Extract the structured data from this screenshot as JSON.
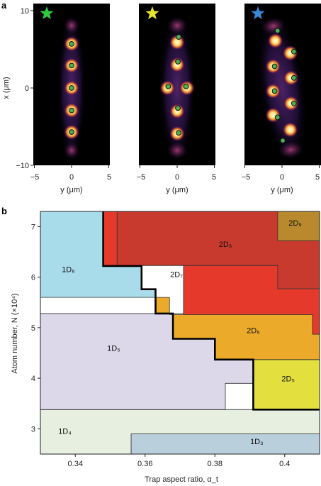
{
  "panel_a": {
    "label": "a",
    "y_axis_label": "x (μm)",
    "y_ticks": [
      "10",
      "0",
      "−10"
    ],
    "x_axis_label": "y (μm)",
    "x_ticks": [
      "−5",
      "0",
      "5"
    ],
    "images": [
      {
        "star_color": "#2ecc40",
        "sites": [
          [
            0,
            5.7
          ],
          [
            0,
            2.9
          ],
          [
            0,
            0
          ],
          [
            0,
            -2.9
          ],
          [
            0,
            -5.7
          ]
        ],
        "atoms": [
          [
            0,
            5.7
          ],
          [
            0,
            2.9
          ],
          [
            0,
            0
          ],
          [
            0,
            -2.9
          ],
          [
            0,
            -5.7
          ]
        ],
        "pattern": "chain"
      },
      {
        "star_color": "#e6e62c",
        "sites": [
          [
            0,
            5.9
          ],
          [
            0,
            3.0
          ],
          [
            -1.3,
            0
          ],
          [
            1.3,
            0
          ],
          [
            0,
            -3.0
          ],
          [
            0,
            -5.9
          ]
        ],
        "atoms": [
          [
            0.2,
            6.6
          ],
          [
            0.1,
            3.4
          ],
          [
            -1.2,
            0.2
          ],
          [
            1.2,
            0.2
          ],
          [
            0.1,
            -2.6
          ],
          [
            0.2,
            -5.8
          ]
        ],
        "pattern": "zigzag"
      },
      {
        "star_color": "#3a87d8",
        "sites": [
          [
            -0.9,
            6.1
          ],
          [
            1.1,
            4.5
          ],
          [
            -1.2,
            2.8
          ],
          [
            1.2,
            1.3
          ],
          [
            -1.2,
            -0.4
          ],
          [
            1.2,
            -2.0
          ],
          [
            -1.2,
            -3.5
          ],
          [
            1.1,
            -5.4
          ]
        ],
        "atoms": [
          [
            -0.6,
            7.4
          ],
          [
            1.6,
            4.7
          ],
          [
            -1.0,
            2.8
          ],
          [
            1.6,
            1.3
          ],
          [
            -1.0,
            -0.4
          ],
          [
            1.6,
            -2.0
          ],
          [
            -0.6,
            -3.8
          ],
          [
            0.1,
            -6.8
          ]
        ],
        "pattern": "2d"
      }
    ]
  },
  "panel_b": {
    "label": "b",
    "ylabel": "Atom number, N (×10⁴)",
    "xlabel": "Trap aspect ratio, α_t",
    "y_ticks": [
      "3",
      "4",
      "5",
      "6",
      "7"
    ],
    "x_ticks": [
      "0.34",
      "0.36",
      "0.38",
      "0.4"
    ]
  },
  "chart_data": {
    "type": "heatmap",
    "title": "",
    "xlabel": "Trap aspect ratio, α_t",
    "ylabel": "Atom number, N (×10⁴)",
    "xlim": [
      0.33,
      0.41
    ],
    "ylim": [
      2.5,
      7.3
    ],
    "regions": [
      {
        "label": "1D₃",
        "color": "#b9cfdb",
        "polygon": [
          [
            0.356,
            2.5
          ],
          [
            0.41,
            2.5
          ],
          [
            0.41,
            2.9
          ],
          [
            0.356,
            2.9
          ]
        ]
      },
      {
        "label": "1D₄",
        "color": "#e6efe0",
        "polygon": [
          [
            0.33,
            2.5
          ],
          [
            0.356,
            2.5
          ],
          [
            0.356,
            2.9
          ],
          [
            0.41,
            2.9
          ],
          [
            0.41,
            3.38
          ],
          [
            0.33,
            3.38
          ]
        ]
      },
      {
        "label": "1D₅",
        "color": "#ddd7ea",
        "polygon": [
          [
            0.33,
            3.38
          ],
          [
            0.383,
            3.38
          ],
          [
            0.383,
            3.9
          ],
          [
            0.391,
            3.9
          ],
          [
            0.391,
            5.28
          ],
          [
            0.33,
            5.28
          ]
        ]
      },
      {
        "label": "1D₆",
        "color": "#a8dcea",
        "polygon": [
          [
            0.33,
            5.28
          ],
          [
            0.363,
            5.28
          ],
          [
            0.363,
            5.6
          ],
          [
            0.33,
            5.6
          ],
          [
            0.33,
            7.3
          ],
          [
            0.348,
            7.3
          ],
          [
            0.348,
            6.22
          ],
          [
            0.359,
            6.22
          ],
          [
            0.359,
            5.76
          ],
          [
            0.363,
            5.76
          ],
          [
            0.363,
            5.28
          ]
        ]
      },
      {
        "label": "2D₅",
        "color": "#e2df3f",
        "polygon": [
          [
            0.391,
            3.38
          ],
          [
            0.41,
            3.38
          ],
          [
            0.41,
            4.37
          ],
          [
            0.391,
            4.37
          ]
        ]
      },
      {
        "label": "2D₆",
        "color": "#ecaa2a",
        "polygon": [
          [
            0.363,
            5.28
          ],
          [
            0.368,
            5.28
          ],
          [
            0.368,
            4.78
          ],
          [
            0.38,
            4.78
          ],
          [
            0.38,
            4.37
          ],
          [
            0.41,
            4.37
          ],
          [
            0.41,
            4.87
          ],
          [
            0.408,
            4.87
          ],
          [
            0.408,
            5.26
          ],
          [
            0.367,
            5.26
          ],
          [
            0.367,
            5.6
          ],
          [
            0.363,
            5.6
          ]
        ]
      },
      {
        "label": "2D₇",
        "color": "#e5392b",
        "polygon": [
          [
            0.348,
            7.3
          ],
          [
            0.352,
            7.3
          ],
          [
            0.352,
            6.24
          ],
          [
            0.371,
            6.24
          ],
          [
            0.371,
            5.26
          ],
          [
            0.408,
            5.26
          ],
          [
            0.408,
            4.87
          ],
          [
            0.41,
            4.87
          ],
          [
            0.41,
            5.77
          ],
          [
            0.398,
            5.77
          ],
          [
            0.398,
            6.23
          ],
          [
            0.352,
            6.23
          ],
          [
            0.348,
            6.23
          ]
        ]
      },
      {
        "label": "2D₈",
        "color": "#c93a2e",
        "polygon": [
          [
            0.352,
            7.3
          ],
          [
            0.41,
            7.3
          ],
          [
            0.41,
            5.77
          ],
          [
            0.398,
            5.77
          ],
          [
            0.398,
            6.23
          ],
          [
            0.352,
            6.23
          ]
        ]
      },
      {
        "label": "2D₉",
        "color": "#b8892d",
        "polygon": [
          [
            0.398,
            6.72
          ],
          [
            0.41,
            6.72
          ],
          [
            0.41,
            7.3
          ],
          [
            0.398,
            7.3
          ]
        ]
      }
    ],
    "boundary_1D_2D": [
      [
        0.348,
        7.3
      ],
      [
        0.348,
        6.22
      ],
      [
        0.359,
        6.22
      ],
      [
        0.359,
        5.76
      ],
      [
        0.363,
        5.76
      ],
      [
        0.363,
        5.28
      ],
      [
        0.368,
        5.28
      ],
      [
        0.368,
        4.78
      ],
      [
        0.38,
        4.78
      ],
      [
        0.38,
        4.37
      ],
      [
        0.391,
        4.37
      ],
      [
        0.391,
        3.38
      ],
      [
        0.41,
        3.38
      ]
    ]
  }
}
